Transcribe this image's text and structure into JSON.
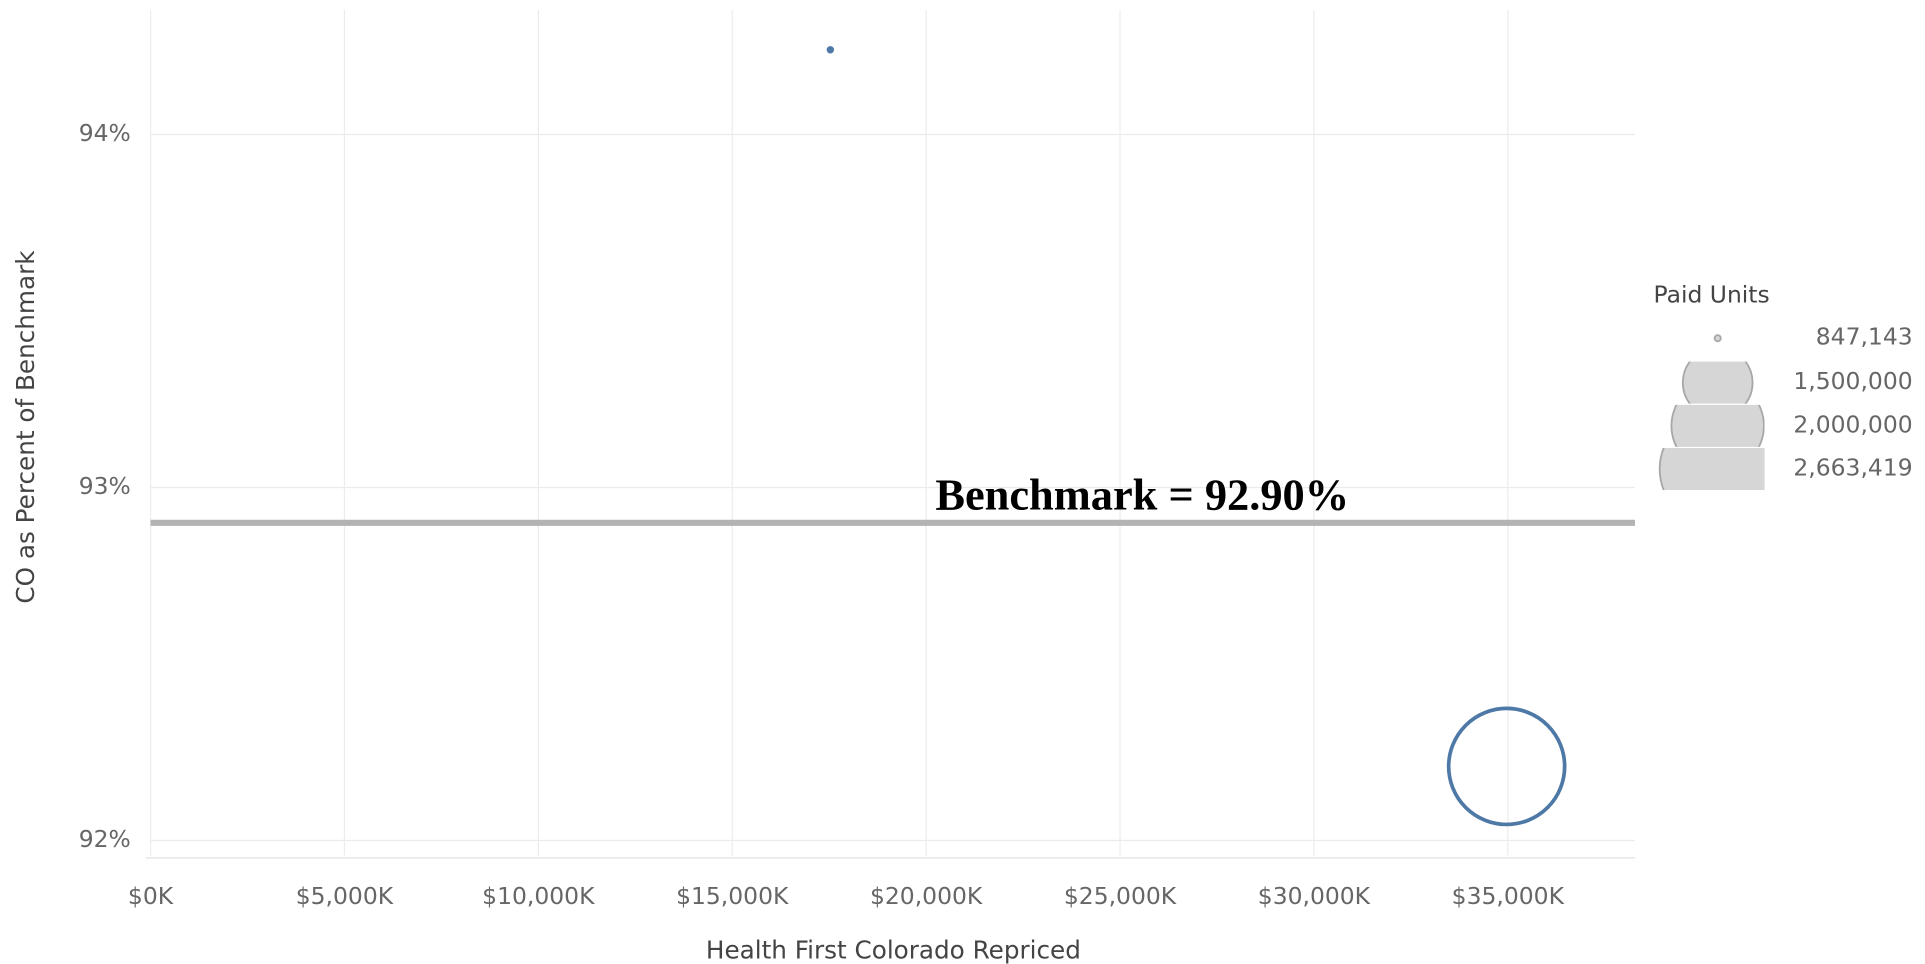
{
  "chart_data": {
    "type": "scatter",
    "x_label": "Health First Colorado Repriced",
    "y_label": "CO as Percent of Benchmark",
    "x": [
      17530,
      34970
    ],
    "values": [
      94.24,
      92.21
    ],
    "sizes": [
      847143,
      2663419
    ],
    "color": "#4e79a7",
    "xlim": [
      0,
      38280
    ],
    "xticks": [
      {
        "value": 0,
        "label": "$0K"
      },
      {
        "value": 5000,
        "label": "$5,000K"
      },
      {
        "value": 10000,
        "label": "$10,000K"
      },
      {
        "value": 15000,
        "label": "$15,000K"
      },
      {
        "value": 20000,
        "label": "$20,000K"
      },
      {
        "value": 25000,
        "label": "$25,000K"
      },
      {
        "value": 30000,
        "label": "$30,000K"
      },
      {
        "value": 35000,
        "label": "$35,000K"
      }
    ],
    "ylim": [
      91.958,
      94.353
    ],
    "yticks": [
      {
        "value": 92,
        "label": "92%"
      },
      {
        "value": 93,
        "label": "93%"
      },
      {
        "value": 94,
        "label": "94%"
      }
    ],
    "grid": true,
    "reference_line": {
      "value": 92.9,
      "label": "Benchmark = 92.90%",
      "color": "#b3b3b3"
    },
    "size_legend_title": "Paid Units",
    "size_legend": [
      {
        "value": 847143,
        "label": "847,143"
      },
      {
        "value": 1500000,
        "label": "1,500,000"
      },
      {
        "value": 2000000,
        "label": "2,000,000"
      },
      {
        "value": 2663419,
        "label": "2,663,419"
      }
    ],
    "legend_position": "right"
  }
}
